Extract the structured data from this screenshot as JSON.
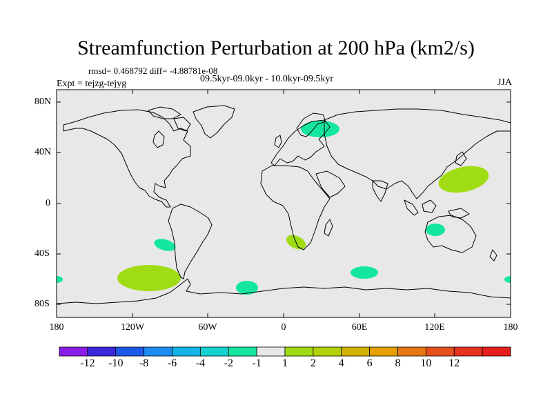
{
  "title": "Streamfunction Perturbation at 200 hPa (km2/s)",
  "stats": "rmsd= 0.468792 diff= -4.88781e-08",
  "experiment": "Expt = tejzg-tejyg",
  "period": "09.5kyr-09.0kyr - 10.0kyr-09.5kyr",
  "season": "JJA",
  "y_axis": [
    "80N",
    "40N",
    "0",
    "40S",
    "80S"
  ],
  "x_axis": [
    "180",
    "120W",
    "60W",
    "0",
    "60E",
    "120E",
    "180"
  ],
  "colorbar": {
    "labels": [
      "-12",
      "-10",
      "-8",
      "-6",
      "-4",
      "-2",
      "-1",
      "1",
      "2",
      "4",
      "6",
      "8",
      "10",
      "12"
    ],
    "colors": [
      "#8a1ee6",
      "#3c28dc",
      "#1e5ae6",
      "#1e8cf0",
      "#14b4e6",
      "#14d2d2",
      "#14e6a0",
      "#e8e8e8",
      "#a0dc14",
      "#b4d20a",
      "#d2b400",
      "#e6a000",
      "#e67814",
      "#e6501e",
      "#e6321e",
      "#e61e1e"
    ],
    "map_background": "#e8e8e8"
  },
  "anomalies": [
    {
      "name": "scandinavia",
      "level": "-2",
      "color": "#14e6a0"
    },
    {
      "name": "west-pacific",
      "level": "2",
      "color": "#a0dc14"
    },
    {
      "name": "australia",
      "level": "-2",
      "color": "#14e6a0"
    },
    {
      "name": "south-africa",
      "level": "2",
      "color": "#a0dc14"
    },
    {
      "name": "south-pacific-a",
      "level": "-2",
      "color": "#14e6a0"
    },
    {
      "name": "south-pacific-b",
      "level": "2",
      "color": "#a0dc14"
    },
    {
      "name": "south-atlantic",
      "level": "-2",
      "color": "#14e6a0"
    },
    {
      "name": "south-indian",
      "level": "-2",
      "color": "#14e6a0"
    },
    {
      "name": "dateline-east",
      "level": "-2",
      "color": "#14e6a0"
    },
    {
      "name": "dateline-west",
      "level": "-2",
      "color": "#14e6a0"
    }
  ]
}
